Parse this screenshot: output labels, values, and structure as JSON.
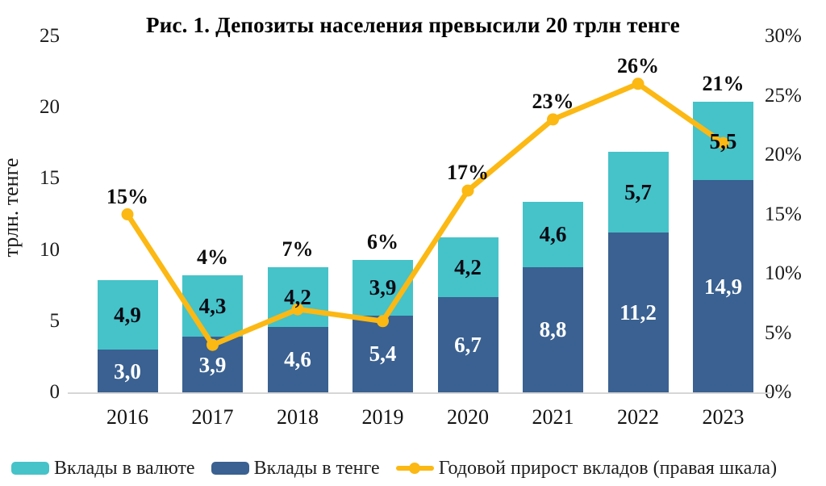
{
  "chart_data": {
    "type": "bar",
    "subtype": "stacked-bars-with-line",
    "title": "Рис. 1. Депозиты населения превысили 20 трлн тенге",
    "left_axis": {
      "title": "трлн. тенге",
      "ticks": [
        "0",
        "5",
        "10",
        "15",
        "20",
        "25"
      ],
      "tick_values": [
        0,
        5,
        10,
        15,
        20,
        25
      ],
      "lim": [
        0,
        25
      ]
    },
    "right_axis": {
      "ticks": [
        "0%",
        "5%",
        "10%",
        "15%",
        "20%",
        "25%",
        "30%"
      ],
      "tick_values": [
        0,
        5,
        10,
        15,
        20,
        25,
        30
      ],
      "lim": [
        0,
        30
      ]
    },
    "categories": [
      "2016",
      "2017",
      "2018",
      "2019",
      "2020",
      "2021",
      "2022",
      "2023"
    ],
    "series": [
      {
        "name": "Вклады в тенге",
        "role": "bar-bottom",
        "color": "#3A6191",
        "label_color": "#FFFFFF",
        "values": [
          3.0,
          3.9,
          4.6,
          5.4,
          6.7,
          8.8,
          11.2,
          14.9
        ],
        "labels": [
          "3,0",
          "3,9",
          "4,6",
          "5,4",
          "6,7",
          "8,8",
          "11,2",
          "14,9"
        ]
      },
      {
        "name": "Вклады в валюте",
        "role": "bar-top",
        "color": "#45C3C9",
        "label_color": "#0A0A14",
        "values": [
          4.9,
          4.3,
          4.2,
          3.9,
          4.2,
          4.6,
          5.7,
          5.5
        ],
        "labels": [
          "4,9",
          "4,3",
          "4,2",
          "3,9",
          "4,2",
          "4,6",
          "5,7",
          "5,5"
        ]
      },
      {
        "name": "Годовой прирост вкладов (правая шкала)",
        "role": "line-right-axis",
        "color": "#FCB813",
        "values": [
          15,
          4,
          7,
          6,
          17,
          23,
          26,
          21
        ],
        "labels": [
          "15%",
          "4%",
          "7%",
          "6%",
          "17%",
          "23%",
          "26%",
          "21%"
        ]
      }
    ],
    "legend": [
      {
        "label": "Вклады в валюте",
        "swatch": "rect",
        "color": "#45C3C9"
      },
      {
        "label": "Вклады в тенге",
        "swatch": "rect",
        "color": "#3A6191"
      },
      {
        "label": "Годовой прирост вкладов (правая шкала)",
        "swatch": "line-dot",
        "color": "#FCB813"
      }
    ],
    "grid": "off",
    "legend_position": "bottom"
  }
}
